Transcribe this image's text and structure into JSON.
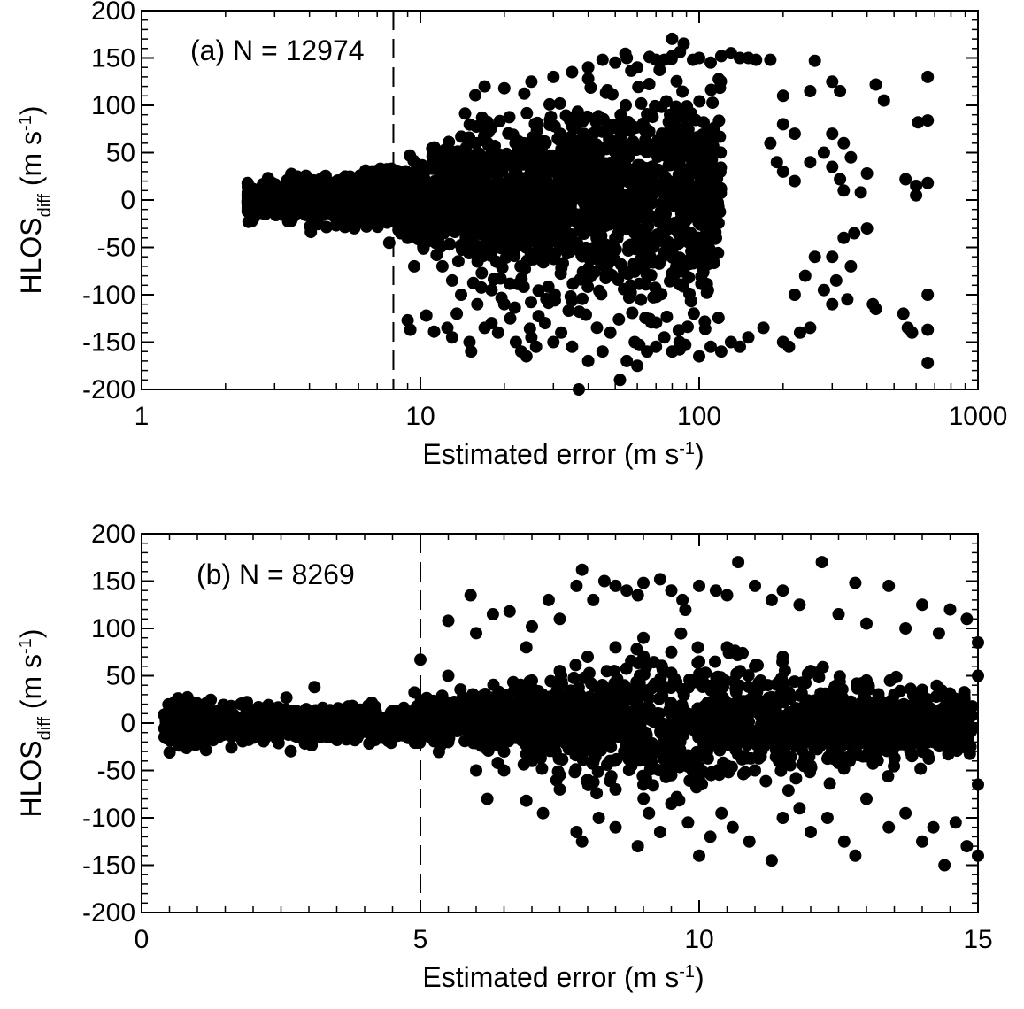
{
  "chart_data": [
    {
      "panel": "a",
      "type": "scatter",
      "annotation": "(a)  N = 12974",
      "xlabel": "Estimated error",
      "xlabel_unit": "(m s",
      "xlabel_exp": "-1",
      "xlabel_close": ")",
      "ylabel": "HLOS",
      "ylabel_sub": "diff",
      "ylabel_unit": " (m s",
      "ylabel_exp": "-1",
      "ylabel_close": ")",
      "xscale": "log",
      "xlim": [
        1,
        1000
      ],
      "ylim": [
        -200,
        200
      ],
      "xticks": [
        1,
        10,
        100,
        1000
      ],
      "xtick_labels": [
        "1",
        "10",
        "100",
        "1000"
      ],
      "yticks": [
        200,
        150,
        100,
        50,
        0,
        -50,
        -100,
        -150,
        -200
      ],
      "ytick_labels": [
        "200",
        "150",
        "100",
        "50",
        "0",
        "-50",
        "-100",
        "-150",
        "-200"
      ],
      "reference_line_x": 8,
      "marker_color": "#000000",
      "density_envelope": [
        {
          "x": 2.4,
          "spread": 12
        },
        {
          "x": 4,
          "spread": 18
        },
        {
          "x": 8,
          "spread": 28
        },
        {
          "x": 15,
          "spread": 55
        },
        {
          "x": 30,
          "spread": 85
        },
        {
          "x": 60,
          "spread": 105
        },
        {
          "x": 100,
          "spread": 110
        },
        {
          "x": 200,
          "spread": 100
        },
        {
          "x": 660,
          "spread": 90
        }
      ],
      "points": [
        [
          9,
          -127
        ],
        [
          9.2,
          -137
        ],
        [
          10.5,
          -122
        ],
        [
          11.2,
          -139
        ],
        [
          12.5,
          -135
        ],
        [
          13,
          -145
        ],
        [
          13.5,
          -120
        ],
        [
          15,
          -150
        ],
        [
          15.2,
          -160
        ],
        [
          17,
          -135
        ],
        [
          18,
          -130
        ],
        [
          19,
          -140
        ],
        [
          21,
          -125
        ],
        [
          22,
          -150
        ],
        [
          23,
          -160
        ],
        [
          24,
          -165
        ],
        [
          25,
          -145
        ],
        [
          26,
          -155
        ],
        [
          28,
          -130
        ],
        [
          30,
          -150
        ],
        [
          32,
          -140
        ],
        [
          35,
          -155
        ],
        [
          37,
          -200
        ],
        [
          40,
          -170
        ],
        [
          45,
          -160
        ],
        [
          48,
          -140
        ],
        [
          52,
          -190
        ],
        [
          55,
          -170
        ],
        [
          60,
          -175
        ],
        [
          65,
          -160
        ],
        [
          70,
          -155
        ],
        [
          75,
          -145
        ],
        [
          80,
          -160
        ],
        [
          85,
          -150
        ],
        [
          100,
          -165
        ],
        [
          110,
          -155
        ],
        [
          120,
          -160
        ],
        [
          130,
          -150
        ],
        [
          140,
          -155
        ],
        [
          150,
          -145
        ],
        [
          170,
          -135
        ],
        [
          200,
          -150
        ],
        [
          210,
          -155
        ],
        [
          230,
          -140
        ],
        [
          250,
          -135
        ],
        [
          300,
          -110
        ],
        [
          430,
          -115
        ],
        [
          540,
          -120
        ],
        [
          560,
          -135
        ],
        [
          580,
          -140
        ],
        [
          660,
          -172
        ],
        [
          660,
          -137
        ],
        [
          660,
          -100
        ],
        [
          40,
          140
        ],
        [
          45,
          148
        ],
        [
          50,
          145
        ],
        [
          55,
          150
        ],
        [
          60,
          140
        ],
        [
          70,
          148
        ],
        [
          75,
          148
        ],
        [
          80,
          152
        ],
        [
          88,
          165
        ],
        [
          95,
          148
        ],
        [
          100,
          150
        ],
        [
          110,
          145
        ],
        [
          120,
          152
        ],
        [
          130,
          155
        ],
        [
          140,
          150
        ],
        [
          150,
          150
        ],
        [
          160,
          148
        ],
        [
          180,
          148
        ],
        [
          260,
          147
        ],
        [
          17,
          120
        ],
        [
          20,
          118
        ],
        [
          25,
          125
        ],
        [
          30,
          130
        ],
        [
          35,
          135
        ],
        [
          40,
          128
        ],
        [
          200,
          110
        ],
        [
          250,
          115
        ],
        [
          300,
          125
        ],
        [
          320,
          115
        ],
        [
          430,
          122
        ],
        [
          460,
          105
        ],
        [
          610,
          82
        ],
        [
          660,
          130
        ],
        [
          660,
          84
        ],
        [
          200,
          80
        ],
        [
          220,
          70
        ],
        [
          300,
          70
        ],
        [
          330,
          60
        ],
        [
          350,
          45
        ],
        [
          320,
          22
        ],
        [
          330,
          10
        ],
        [
          380,
          8
        ],
        [
          400,
          28
        ],
        [
          550,
          22
        ],
        [
          600,
          15
        ],
        [
          660,
          18
        ],
        [
          600,
          5
        ],
        [
          400,
          -30
        ],
        [
          360,
          -35
        ],
        [
          330,
          -40
        ],
        [
          300,
          -60
        ],
        [
          350,
          -70
        ],
        [
          420,
          -110
        ],
        [
          9.5,
          -70
        ],
        [
          9,
          -40
        ],
        [
          8.5,
          -35
        ],
        [
          14,
          -100
        ],
        [
          16,
          -110
        ],
        [
          18,
          -95
        ],
        [
          20,
          -110
        ],
        [
          12,
          -70
        ],
        [
          13,
          -85
        ],
        [
          220,
          -100
        ],
        [
          240,
          -80
        ],
        [
          260,
          -60
        ],
        [
          280,
          -95
        ],
        [
          310,
          -85
        ],
        [
          340,
          -105
        ],
        [
          200,
          30
        ],
        [
          220,
          20
        ],
        [
          250,
          40
        ],
        [
          280,
          50
        ],
        [
          300,
          35
        ],
        [
          180,
          60
        ],
        [
          190,
          40
        ]
      ]
    },
    {
      "panel": "b",
      "type": "scatter",
      "annotation": "(b)  N =  8269",
      "xlabel": "Estimated error",
      "xlabel_unit": "(m s",
      "xlabel_exp": "-1",
      "xlabel_close": ")",
      "ylabel": "HLOS",
      "ylabel_sub": "diff",
      "ylabel_unit": " (m s",
      "ylabel_exp": "-1",
      "ylabel_close": ")",
      "xscale": "linear",
      "xlim": [
        0,
        15
      ],
      "ylim": [
        -200,
        200
      ],
      "xticks": [
        0,
        5,
        10,
        15
      ],
      "xtick_labels": [
        "0",
        "5",
        "10",
        "15"
      ],
      "yticks": [
        200,
        150,
        100,
        50,
        0,
        -50,
        -100,
        -150,
        -200
      ],
      "ytick_labels": [
        "200",
        "150",
        "100",
        "50",
        "0",
        "-50",
        "-100",
        "-150",
        "-200"
      ],
      "reference_line_x": 5,
      "marker_color": "#000000",
      "density_envelope": [
        {
          "x": 0.4,
          "spread": 22
        },
        {
          "x": 2,
          "spread": 18
        },
        {
          "x": 4,
          "spread": 16
        },
        {
          "x": 5,
          "spread": 18
        },
        {
          "x": 6,
          "spread": 25
        },
        {
          "x": 7.5,
          "spread": 40
        },
        {
          "x": 9,
          "spread": 60
        },
        {
          "x": 10.5,
          "spread": 55
        },
        {
          "x": 12,
          "spread": 40
        },
        {
          "x": 15,
          "spread": 25
        }
      ],
      "points": [
        [
          3.1,
          38
        ],
        [
          5,
          67
        ],
        [
          5.5,
          50
        ],
        [
          5.5,
          108
        ],
        [
          5.9,
          135
        ],
        [
          6.0,
          95
        ],
        [
          6.3,
          115
        ],
        [
          6.6,
          118
        ],
        [
          6.9,
          80
        ],
        [
          7.0,
          102
        ],
        [
          7.3,
          130
        ],
        [
          7.5,
          110
        ],
        [
          7.8,
          145
        ],
        [
          7.9,
          162
        ],
        [
          8.1,
          130
        ],
        [
          8.3,
          150
        ],
        [
          8.5,
          145
        ],
        [
          8.7,
          140
        ],
        [
          8.9,
          135
        ],
        [
          9.0,
          148
        ],
        [
          9.3,
          152
        ],
        [
          9.5,
          140
        ],
        [
          9.7,
          130
        ],
        [
          10.0,
          145
        ],
        [
          10.3,
          140
        ],
        [
          10.5,
          135
        ],
        [
          10.7,
          170
        ],
        [
          11.0,
          145
        ],
        [
          11.3,
          130
        ],
        [
          11.5,
          140
        ],
        [
          11.8,
          125
        ],
        [
          12.2,
          170
        ],
        [
          12.5,
          115
        ],
        [
          12.8,
          148
        ],
        [
          13.0,
          105
        ],
        [
          13.4,
          145
        ],
        [
          13.7,
          100
        ],
        [
          14.0,
          125
        ],
        [
          14.3,
          95
        ],
        [
          14.5,
          120
        ],
        [
          14.8,
          110
        ],
        [
          15.0,
          50
        ],
        [
          15.0,
          85
        ],
        [
          5.5,
          -20
        ],
        [
          6.0,
          -50
        ],
        [
          6.2,
          -80
        ],
        [
          6.5,
          -50
        ],
        [
          6.9,
          -82
        ],
        [
          7.2,
          -95
        ],
        [
          7.5,
          -70
        ],
        [
          7.8,
          -115
        ],
        [
          7.9,
          -125
        ],
        [
          8.2,
          -100
        ],
        [
          8.5,
          -110
        ],
        [
          8.9,
          -130
        ],
        [
          9.1,
          -95
        ],
        [
          9.3,
          -115
        ],
        [
          9.5,
          -85
        ],
        [
          9.8,
          -105
        ],
        [
          10.0,
          -140
        ],
        [
          10.2,
          -120
        ],
        [
          10.4,
          -95
        ],
        [
          10.6,
          -110
        ],
        [
          10.9,
          -125
        ],
        [
          11.3,
          -145
        ],
        [
          11.5,
          -100
        ],
        [
          11.8,
          -90
        ],
        [
          12.0,
          -115
        ],
        [
          12.3,
          -100
        ],
        [
          12.6,
          -125
        ],
        [
          12.8,
          -140
        ],
        [
          13.0,
          -80
        ],
        [
          13.4,
          -110
        ],
        [
          13.7,
          -95
        ],
        [
          14.0,
          -125
        ],
        [
          14.2,
          -110
        ],
        [
          14.4,
          -150
        ],
        [
          14.6,
          -105
        ],
        [
          14.8,
          -130
        ],
        [
          15.0,
          -140
        ],
        [
          15.0,
          -65
        ],
        [
          6.5,
          30
        ],
        [
          7.0,
          45
        ],
        [
          7.5,
          55
        ],
        [
          8.0,
          70
        ],
        [
          8.5,
          80
        ],
        [
          9.0,
          90
        ],
        [
          9.5,
          75
        ],
        [
          10.0,
          65
        ],
        [
          10.5,
          80
        ],
        [
          11.0,
          60
        ],
        [
          11.5,
          70
        ],
        [
          12.0,
          55
        ],
        [
          12.5,
          40
        ],
        [
          13.0,
          45
        ],
        [
          13.5,
          30
        ],
        [
          14.0,
          35
        ],
        [
          14.5,
          20
        ],
        [
          6.5,
          -30
        ],
        [
          7.0,
          -40
        ],
        [
          7.5,
          -55
        ],
        [
          8.0,
          -60
        ],
        [
          8.5,
          -70
        ],
        [
          9.0,
          -65
        ],
        [
          9.5,
          -55
        ],
        [
          10.0,
          -60
        ],
        [
          10.5,
          -45
        ],
        [
          11.0,
          -50
        ],
        [
          11.5,
          -40
        ],
        [
          12.0,
          -45
        ],
        [
          12.5,
          -30
        ],
        [
          13.0,
          -35
        ],
        [
          13.5,
          -25
        ],
        [
          14.0,
          -30
        ],
        [
          14.5,
          -20
        ]
      ]
    }
  ]
}
